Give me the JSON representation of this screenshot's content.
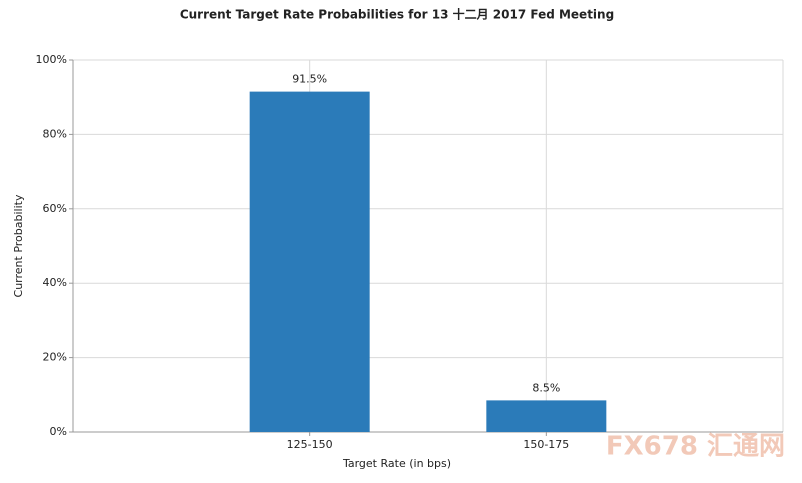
{
  "chart_data": {
    "type": "bar",
    "title": "Current Target Rate Probabilities for 13 十二月 2017 Fed Meeting",
    "x_label": "Target Rate (in bps)",
    "y_label": "Current Probability",
    "categories": [
      "125-150",
      "150-175"
    ],
    "values": [
      91.5,
      8.5
    ],
    "value_labels": [
      "91.5%",
      "8.5%"
    ],
    "color": "#2b7bb9",
    "ylim": [
      0,
      100
    ],
    "yticks": [
      {
        "value": 0,
        "label": "0%"
      },
      {
        "value": 20,
        "label": "20%"
      },
      {
        "value": 40,
        "label": "40%"
      },
      {
        "value": 60,
        "label": "60%"
      },
      {
        "value": 80,
        "label": "80%"
      },
      {
        "value": 100,
        "label": "100%"
      }
    ],
    "grid": true,
    "watermark": "FX678 汇通网"
  }
}
